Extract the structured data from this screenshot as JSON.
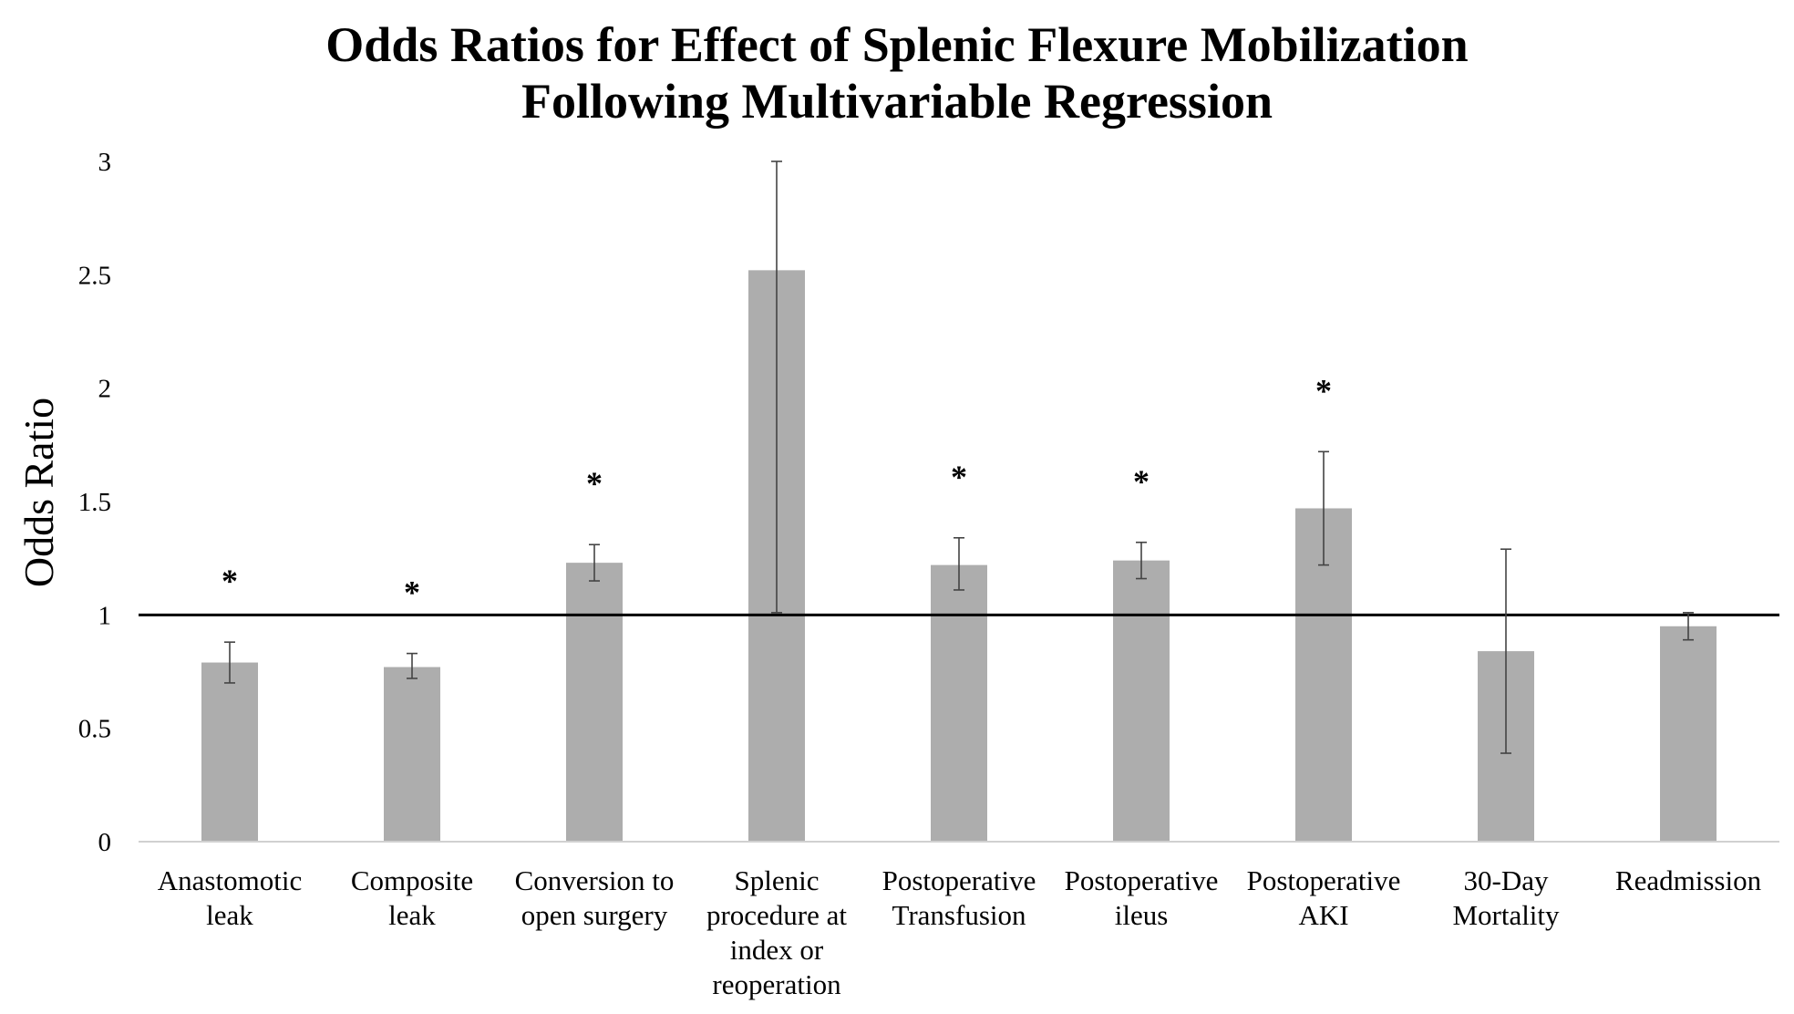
{
  "chart_data": {
    "type": "bar",
    "title": [
      "Odds Ratios for Effect of Splenic Flexure Mobilization",
      "Following Multivariable Regression"
    ],
    "xlabel": "",
    "ylabel": "Odds Ratio",
    "ylim": [
      0,
      3
    ],
    "yticks": [
      0,
      0.5,
      1,
      1.5,
      2,
      2.5,
      3
    ],
    "ytick_labels": [
      "0",
      "0.5",
      "1",
      "1.5",
      "2",
      "2.5",
      "3"
    ],
    "reference_line": 1,
    "grid": false,
    "legend": "none",
    "bar_color": "#adadad",
    "categories": [
      [
        "Anastomotic",
        "leak"
      ],
      [
        "Composite",
        "leak"
      ],
      [
        "Conversion to",
        "open surgery"
      ],
      [
        "Splenic",
        "procedure at",
        "index or",
        "reoperation"
      ],
      [
        "Postoperative",
        "Transfusion"
      ],
      [
        "Postoperative",
        "ileus"
      ],
      [
        "Postoperative",
        "AKI"
      ],
      [
        "30-Day",
        "Mortality"
      ],
      [
        "Readmission"
      ]
    ],
    "values": [
      0.79,
      0.77,
      1.23,
      2.52,
      1.22,
      1.24,
      1.47,
      0.84,
      0.95
    ],
    "ci_lower": [
      0.7,
      0.72,
      1.15,
      1.01,
      1.11,
      1.16,
      1.22,
      0.39,
      0.89
    ],
    "ci_upper": [
      0.88,
      0.83,
      1.31,
      3.0,
      1.34,
      1.32,
      1.72,
      1.29,
      1.01
    ],
    "significance_marker": "*",
    "significant": [
      true,
      true,
      true,
      false,
      true,
      true,
      true,
      false,
      false
    ]
  }
}
